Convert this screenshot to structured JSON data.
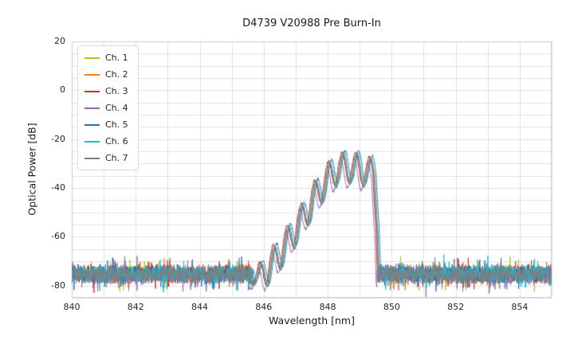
{
  "chart_data": {
    "type": "line",
    "title": "D4739 V20988 Pre Burn-In",
    "xlabel": "Wavelength [nm]",
    "ylabel": "Optical Power [dB]",
    "xlim": [
      840,
      855
    ],
    "ylim": [
      -85,
      20
    ],
    "x_ticks": [
      840,
      842,
      844,
      846,
      848,
      850,
      852,
      854
    ],
    "y_ticks": [
      20,
      0,
      -20,
      -40,
      -60,
      -80
    ],
    "grid": {
      "x_step": 1,
      "y_step": 5,
      "color": "#e0e0e0",
      "border_color": "#cccccc"
    },
    "legend_position": "upper left",
    "noise_floor_db": -78,
    "noise_spread_db": 4,
    "band": {
      "start_nm": 845.62,
      "stop_nm": 849.62,
      "fringe_period_nm": 0.43,
      "first_peak_nm": 845.9
    },
    "fringe_depth_db": [
      13,
      12
    ],
    "envelope_points": [
      [
        845.62,
        -78
      ],
      [
        845.9,
        -71
      ],
      [
        846.33,
        -64
      ],
      [
        846.76,
        -56
      ],
      [
        847.19,
        -47
      ],
      [
        847.62,
        -37.5
      ],
      [
        848.05,
        -29.5
      ],
      [
        848.3,
        -26.5
      ],
      [
        848.55,
        -25.5
      ],
      [
        848.91,
        -26
      ],
      [
        849.2,
        -27
      ],
      [
        849.45,
        -28.5
      ],
      [
        849.55,
        -45
      ],
      [
        849.62,
        -78
      ]
    ],
    "series": [
      {
        "name": "Ch. 1",
        "color": "#bcbd22",
        "dx": -0.02,
        "dy": 0.0
      },
      {
        "name": "Ch. 2",
        "color": "#ff7f0e",
        "dx": 0.0,
        "dy": -0.5
      },
      {
        "name": "Ch. 3",
        "color": "#d62728",
        "dx": -0.04,
        "dy": 0.5
      },
      {
        "name": "Ch. 4",
        "color": "#9467bd",
        "dx": -0.08,
        "dy": -2.0
      },
      {
        "name": "Ch. 5",
        "color": "#1f77b4",
        "dx": 0.06,
        "dy": 1.0
      },
      {
        "name": "Ch. 6",
        "color": "#17becf",
        "dx": 0.02,
        "dy": 0.0
      },
      {
        "name": "Ch. 7",
        "color": "#7f7f7f",
        "dx": 0.0,
        "dy": -0.5
      }
    ]
  }
}
